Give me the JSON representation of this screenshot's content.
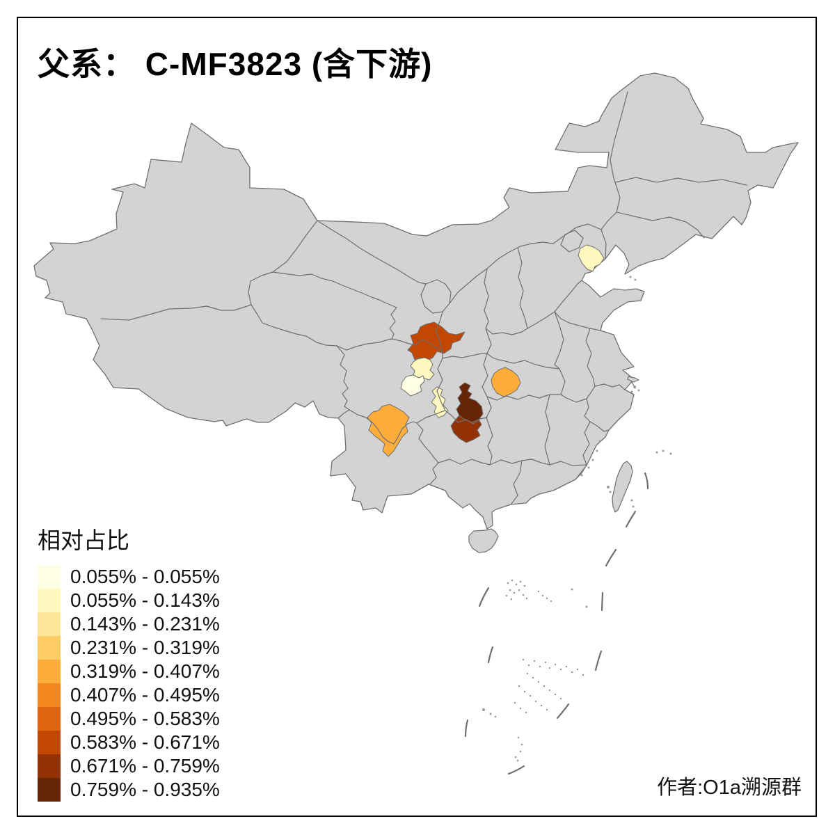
{
  "title": "父系： C-MF3823 (含下游)",
  "legend": {
    "title": "相对占比",
    "classes": [
      {
        "label": "0.055% - 0.055%",
        "color": "#FFFFE5"
      },
      {
        "label": "0.055% - 0.143%",
        "color": "#FFF8BF"
      },
      {
        "label": "0.143% - 0.231%",
        "color": "#FEE79B"
      },
      {
        "label": "0.231% - 0.319%",
        "color": "#FECE65"
      },
      {
        "label": "0.319% - 0.407%",
        "color": "#FEAC3A"
      },
      {
        "label": "0.407% - 0.495%",
        "color": "#F68720"
      },
      {
        "label": "0.495% - 0.583%",
        "color": "#E16410"
      },
      {
        "label": "0.583% - 0.671%",
        "color": "#C14702"
      },
      {
        "label": "0.671% - 0.759%",
        "color": "#933205"
      },
      {
        "label": "0.759% - 0.935%",
        "color": "#662506"
      }
    ]
  },
  "attribution": "作者:O1a溯源群",
  "map": {
    "land_color": "#D3D3D3",
    "border_color": "#6E6E6E",
    "background_color": "#FFFFFF",
    "frame_color": "#000000",
    "regions": [
      {
        "id": "tianjin-area",
        "class_index": 1
      },
      {
        "id": "south-gansu",
        "class_index": 7
      },
      {
        "id": "north-sichuan",
        "class_index": 1
      },
      {
        "id": "west-sichuan",
        "class_index": 0
      },
      {
        "id": "central-sichuan",
        "class_index": 1
      },
      {
        "id": "west-hubei",
        "class_index": 4
      },
      {
        "id": "south-sichuan",
        "class_index": 4
      },
      {
        "id": "chongqing-south",
        "class_index": 9
      },
      {
        "id": "north-guizhou",
        "class_index": 8
      }
    ]
  }
}
